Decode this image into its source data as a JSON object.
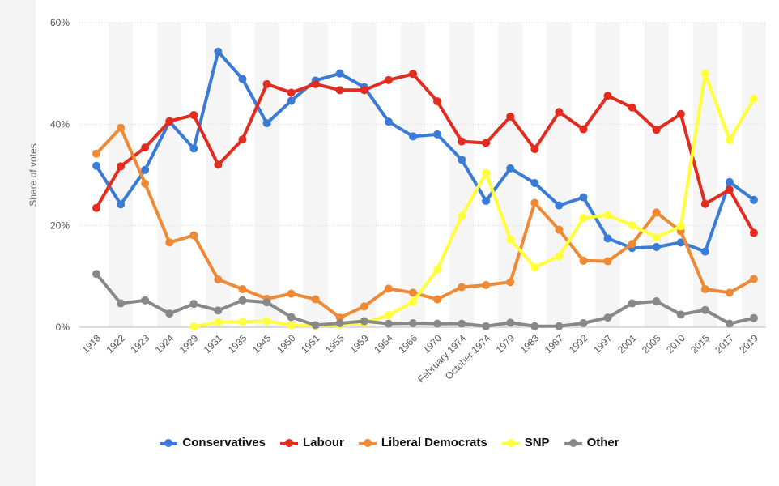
{
  "chart_data": {
    "type": "line",
    "title": "",
    "xlabel": "",
    "ylabel": "Share of votes",
    "ylim": [
      0,
      60
    ],
    "y_ticks": [
      "0%",
      "20%",
      "40%",
      "60%"
    ],
    "y_tick_values": [
      0,
      20,
      40,
      60
    ],
    "grid": "horizontal",
    "legend_position": "bottom",
    "categories": [
      "1918",
      "1922",
      "1923",
      "1924",
      "1929",
      "1931",
      "1935",
      "1945",
      "1950",
      "1951",
      "1955",
      "1959",
      "1964",
      "1966",
      "1970",
      "February 1974",
      "October 1974",
      "1979",
      "1983",
      "1987",
      "1992",
      "1997",
      "2001",
      "2005",
      "2010",
      "2015",
      "2017",
      "2019"
    ],
    "series": [
      {
        "name": "Conservatives",
        "color": "#3a7bd5",
        "values": [
          31.8,
          24.2,
          31.0,
          40.5,
          35.2,
          54.3,
          48.9,
          40.2,
          44.6,
          48.6,
          50.0,
          47.3,
          40.5,
          37.6,
          38.0,
          33.0,
          24.9,
          31.3,
          28.4,
          24.0,
          25.6,
          17.5,
          15.6,
          15.8,
          16.7,
          14.9,
          28.6,
          25.1
        ]
      },
      {
        "name": "Labour",
        "color": "#e32b1f",
        "values": [
          23.5,
          31.7,
          35.4,
          40.6,
          41.8,
          32.0,
          37.0,
          47.9,
          46.2,
          47.9,
          46.7,
          46.7,
          48.7,
          49.9,
          44.5,
          36.6,
          36.3,
          41.5,
          35.1,
          42.4,
          39.0,
          45.6,
          43.3,
          38.9,
          42.0,
          24.3,
          27.1,
          18.6
        ]
      },
      {
        "name": "Liberal Democrats",
        "color": "#ee8a35",
        "values": [
          34.2,
          39.3,
          28.3,
          16.7,
          18.1,
          9.4,
          7.5,
          5.6,
          6.6,
          5.5,
          1.9,
          4.1,
          7.6,
          6.8,
          5.5,
          7.9,
          8.3,
          8.9,
          24.5,
          19.2,
          13.1,
          13.0,
          16.4,
          22.6,
          18.9,
          7.5,
          6.8,
          9.5
        ]
      },
      {
        "name": "SNP",
        "color": "#ffff3b",
        "values": [
          null,
          null,
          null,
          null,
          0.1,
          1.0,
          1.1,
          1.2,
          0.4,
          0.3,
          0.5,
          0.8,
          2.4,
          5.0,
          11.4,
          21.9,
          30.4,
          17.3,
          11.8,
          14.0,
          21.5,
          22.1,
          20.1,
          17.7,
          19.9,
          50.0,
          36.9,
          45.0
        ]
      },
      {
        "name": "Other",
        "color": "#888888",
        "values": [
          10.5,
          4.7,
          5.3,
          2.7,
          4.6,
          3.3,
          5.3,
          4.9,
          2.0,
          0.4,
          0.8,
          1.2,
          0.7,
          0.8,
          0.7,
          0.7,
          0.2,
          0.9,
          0.2,
          0.2,
          0.8,
          1.9,
          4.7,
          5.1,
          2.5,
          3.4,
          0.7,
          1.8
        ]
      }
    ]
  }
}
